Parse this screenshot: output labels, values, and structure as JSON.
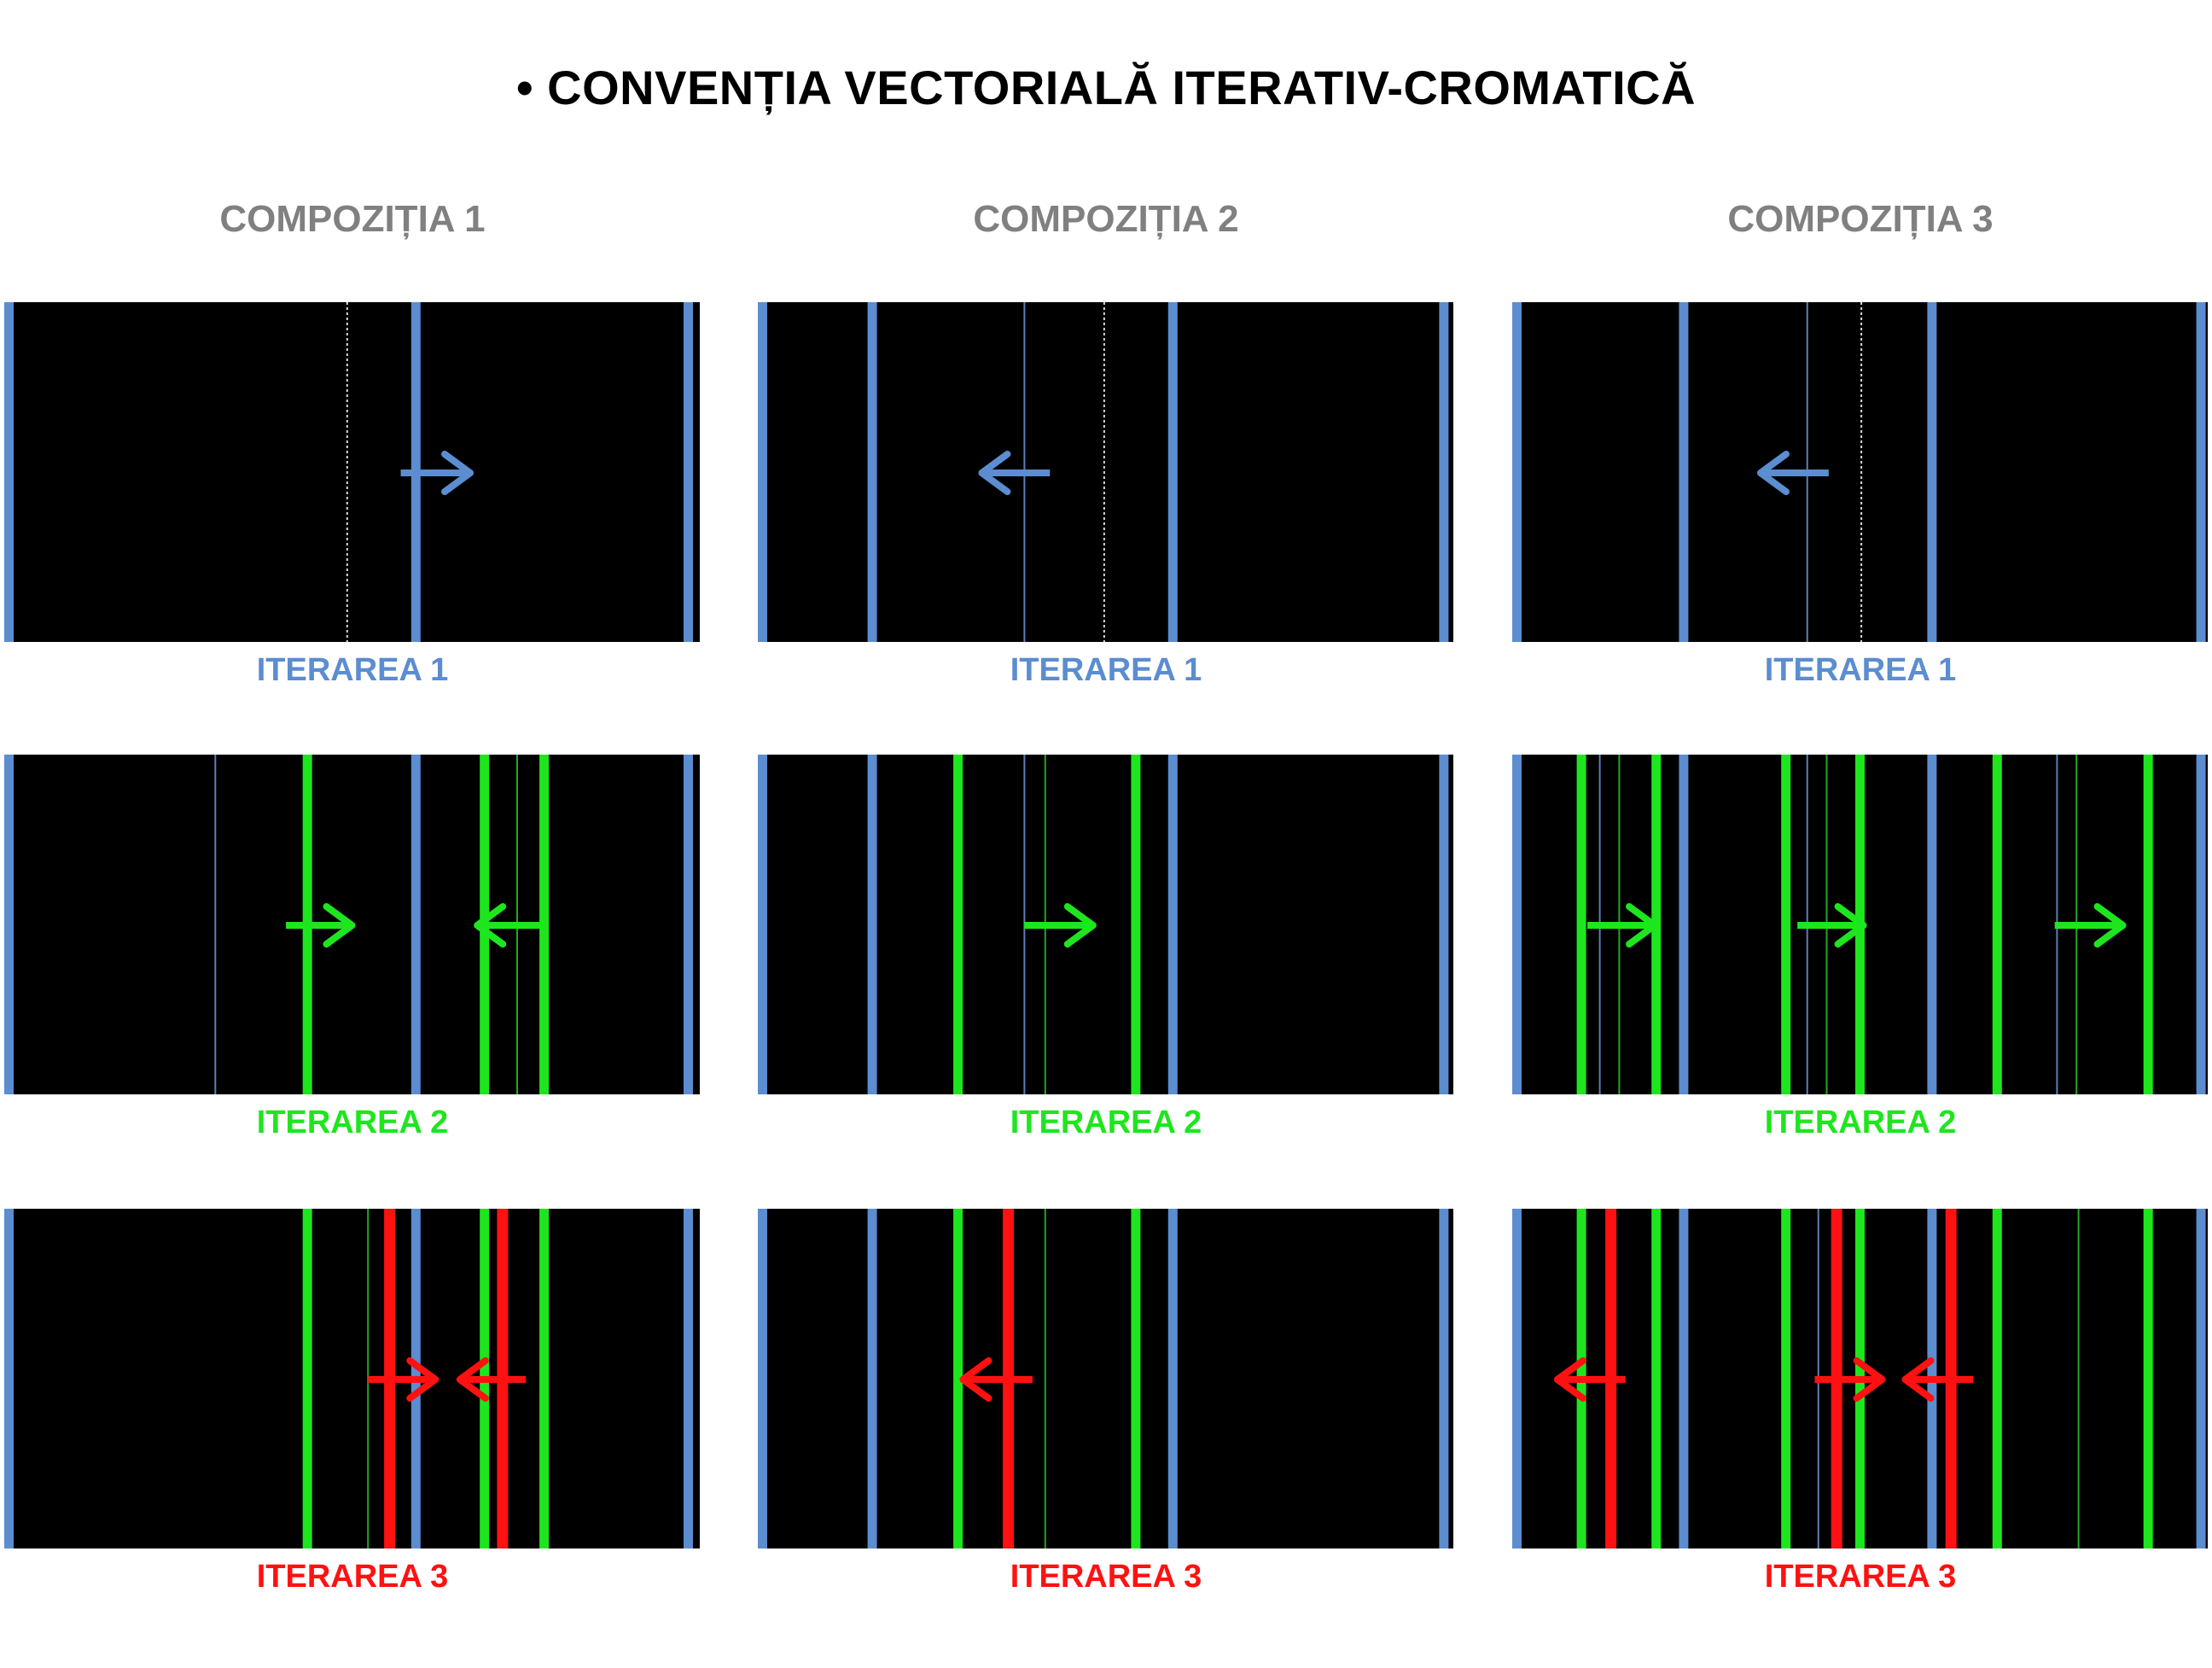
{
  "title": "• CONVENȚIA VECTORIALĂ ITERATIV-CROMATICĂ",
  "colors": {
    "background": "#ffffff",
    "panel": "#000000",
    "heading": "#808080",
    "iteration_1": "#5b8dd0",
    "iteration_2": "#1ee61e",
    "iteration_3": "#ff1111"
  },
  "compositions": [
    {
      "label": "COMPOZIȚIA 1",
      "iterations": [
        {
          "label": "ITERAREA 1",
          "color_key": "iteration_1",
          "lines": [
            {
              "c": "iteration_1",
              "p": 0.0,
              "w": 11
            },
            {
              "c": "iteration_1",
              "p": 0.593,
              "w": 11
            },
            {
              "c": "iteration_1",
              "p": 0.99,
              "w": 11
            },
            {
              "c": "thin_white_dotted",
              "p": 0.493,
              "w": 2
            }
          ],
          "arrows": [
            {
              "c": "iteration_1",
              "from": 0.57,
              "to": 0.67
            }
          ]
        },
        {
          "label": "ITERAREA 2",
          "color_key": "iteration_2",
          "lines": [
            {
              "c": "iteration_1",
              "p": 0.0,
              "w": 11
            },
            {
              "c": "iteration_1",
              "p": 0.593,
              "w": 11
            },
            {
              "c": "iteration_1",
              "p": 0.99,
              "w": 11
            },
            {
              "c": "thin_blue",
              "p": 0.303,
              "w": 2
            },
            {
              "c": "thin_green",
              "p": 0.738,
              "w": 2
            },
            {
              "c": "iteration_2",
              "p": 0.435,
              "w": 11
            },
            {
              "c": "iteration_2",
              "p": 0.693,
              "w": 11
            },
            {
              "c": "iteration_2",
              "p": 0.78,
              "w": 11
            }
          ],
          "arrows": [
            {
              "c": "iteration_2",
              "from": 0.405,
              "to": 0.5
            },
            {
              "c": "iteration_2",
              "from": 0.78,
              "to": 0.68
            }
          ]
        },
        {
          "label": "ITERAREA 3",
          "color_key": "iteration_3",
          "lines": [
            {
              "c": "iteration_1",
              "p": 0.0,
              "w": 11
            },
            {
              "c": "iteration_1",
              "p": 0.593,
              "w": 11
            },
            {
              "c": "iteration_1",
              "p": 0.99,
              "w": 11
            },
            {
              "c": "thin_green",
              "p": 0.523,
              "w": 2
            },
            {
              "c": "iteration_2",
              "p": 0.435,
              "w": 11
            },
            {
              "c": "iteration_2",
              "p": 0.693,
              "w": 11
            },
            {
              "c": "iteration_2",
              "p": 0.78,
              "w": 11
            },
            {
              "c": "iteration_3",
              "p": 0.555,
              "w": 13
            },
            {
              "c": "iteration_3",
              "p": 0.72,
              "w": 13
            }
          ],
          "arrows": [
            {
              "c": "iteration_3",
              "from": 0.523,
              "to": 0.62
            },
            {
              "c": "iteration_3",
              "from": 0.75,
              "to": 0.655
            }
          ]
        }
      ]
    },
    {
      "label": "COMPOZIȚIA 2",
      "iterations": [
        {
          "label": "ITERAREA 1",
          "color_key": "iteration_1",
          "lines": [
            {
              "c": "iteration_1",
              "p": 0.0,
              "w": 11
            },
            {
              "c": "iteration_1",
              "p": 0.16,
              "w": 11
            },
            {
              "c": "iteration_1",
              "p": 0.598,
              "w": 11
            },
            {
              "c": "iteration_1",
              "p": 0.993,
              "w": 11
            },
            {
              "c": "thin_blue",
              "p": 0.383,
              "w": 2
            },
            {
              "c": "thin_white_dotted",
              "p": 0.498,
              "w": 2
            }
          ],
          "arrows": [
            {
              "c": "iteration_1",
              "from": 0.42,
              "to": 0.322
            }
          ]
        },
        {
          "label": "ITERAREA 2",
          "color_key": "iteration_2",
          "lines": [
            {
              "c": "iteration_1",
              "p": 0.0,
              "w": 11
            },
            {
              "c": "iteration_1",
              "p": 0.16,
              "w": 11
            },
            {
              "c": "iteration_1",
              "p": 0.598,
              "w": 11
            },
            {
              "c": "iteration_1",
              "p": 0.993,
              "w": 11
            },
            {
              "c": "thin_blue",
              "p": 0.383,
              "w": 2
            },
            {
              "c": "thin_green",
              "p": 0.413,
              "w": 2
            },
            {
              "c": "iteration_2",
              "p": 0.285,
              "w": 11
            },
            {
              "c": "iteration_2",
              "p": 0.544,
              "w": 11
            }
          ],
          "arrows": [
            {
              "c": "iteration_2",
              "from": 0.383,
              "to": 0.482
            }
          ]
        },
        {
          "label": "ITERAREA 3",
          "color_key": "iteration_3",
          "lines": [
            {
              "c": "iteration_1",
              "p": 0.0,
              "w": 11
            },
            {
              "c": "iteration_1",
              "p": 0.16,
              "w": 11
            },
            {
              "c": "iteration_1",
              "p": 0.598,
              "w": 11
            },
            {
              "c": "iteration_1",
              "p": 0.993,
              "w": 11
            },
            {
              "c": "thin_green",
              "p": 0.413,
              "w": 2
            },
            {
              "c": "iteration_2",
              "p": 0.285,
              "w": 11
            },
            {
              "c": "iteration_2",
              "p": 0.544,
              "w": 11
            },
            {
              "c": "iteration_3",
              "p": 0.358,
              "w": 13
            }
          ],
          "arrows": [
            {
              "c": "iteration_3",
              "from": 0.395,
              "to": 0.295
            }
          ]
        }
      ]
    },
    {
      "label": "COMPOZIȚIA 3",
      "iterations": [
        {
          "label": "ITERAREA 1",
          "color_key": "iteration_1",
          "lines": [
            {
              "c": "iteration_1",
              "p": 0.0,
              "w": 11
            },
            {
              "c": "iteration_1",
              "p": 0.243,
              "w": 11
            },
            {
              "c": "iteration_1",
              "p": 0.605,
              "w": 11
            },
            {
              "c": "iteration_1",
              "p": 0.997,
              "w": 11
            },
            {
              "c": "thin_blue",
              "p": 0.424,
              "w": 2
            },
            {
              "c": "thin_white_dotted",
              "p": 0.502,
              "w": 2
            }
          ],
          "arrows": [
            {
              "c": "iteration_1",
              "from": 0.455,
              "to": 0.357
            }
          ]
        },
        {
          "label": "ITERAREA 2",
          "color_key": "iteration_2",
          "lines": [
            {
              "c": "iteration_1",
              "p": 0.0,
              "w": 11
            },
            {
              "c": "iteration_1",
              "p": 0.243,
              "w": 11
            },
            {
              "c": "iteration_1",
              "p": 0.605,
              "w": 11
            },
            {
              "c": "iteration_1",
              "p": 0.997,
              "w": 11
            },
            {
              "c": "thin_blue",
              "p": 0.125,
              "w": 2
            },
            {
              "c": "thin_green",
              "p": 0.153,
              "w": 2
            },
            {
              "c": "thin_blue",
              "p": 0.424,
              "w": 2
            },
            {
              "c": "thin_green",
              "p": 0.452,
              "w": 2
            },
            {
              "c": "thin_blue",
              "p": 0.784,
              "w": 2
            },
            {
              "c": "thin_green",
              "p": 0.812,
              "w": 2
            },
            {
              "c": "iteration_2",
              "p": 0.094,
              "w": 11
            },
            {
              "c": "iteration_2",
              "p": 0.203,
              "w": 11
            },
            {
              "c": "iteration_2",
              "p": 0.392,
              "w": 11
            },
            {
              "c": "iteration_2",
              "p": 0.5,
              "w": 11
            },
            {
              "c": "iteration_2",
              "p": 0.7,
              "w": 11
            },
            {
              "c": "iteration_2",
              "p": 0.92,
              "w": 11
            }
          ],
          "arrows": [
            {
              "c": "iteration_2",
              "from": 0.108,
              "to": 0.205
            },
            {
              "c": "iteration_2",
              "from": 0.41,
              "to": 0.505
            },
            {
              "c": "iteration_2",
              "from": 0.78,
              "to": 0.878
            }
          ]
        },
        {
          "label": "ITERAREA 3",
          "color_key": "iteration_3",
          "lines": [
            {
              "c": "iteration_1",
              "p": 0.0,
              "w": 11
            },
            {
              "c": "iteration_1",
              "p": 0.243,
              "w": 11
            },
            {
              "c": "iteration_1",
              "p": 0.605,
              "w": 11
            },
            {
              "c": "iteration_1",
              "p": 0.997,
              "w": 11
            },
            {
              "c": "thin_blue",
              "p": 0.44,
              "w": 2
            },
            {
              "c": "thin_green",
              "p": 0.815,
              "w": 2
            },
            {
              "c": "iteration_2",
              "p": 0.094,
              "w": 11
            },
            {
              "c": "iteration_2",
              "p": 0.203,
              "w": 11
            },
            {
              "c": "iteration_2",
              "p": 0.392,
              "w": 11
            },
            {
              "c": "iteration_2",
              "p": 0.5,
              "w": 11
            },
            {
              "c": "iteration_2",
              "p": 0.7,
              "w": 11
            },
            {
              "c": "iteration_2",
              "p": 0.92,
              "w": 11
            },
            {
              "c": "iteration_3",
              "p": 0.136,
              "w": 13
            },
            {
              "c": "iteration_3",
              "p": 0.466,
              "w": 13
            },
            {
              "c": "iteration_3",
              "p": 0.633,
              "w": 13
            }
          ],
          "arrows": [
            {
              "c": "iteration_3",
              "from": 0.163,
              "to": 0.065
            },
            {
              "c": "iteration_3",
              "from": 0.435,
              "to": 0.532
            },
            {
              "c": "iteration_3",
              "from": 0.663,
              "to": 0.565
            }
          ]
        }
      ]
    }
  ]
}
